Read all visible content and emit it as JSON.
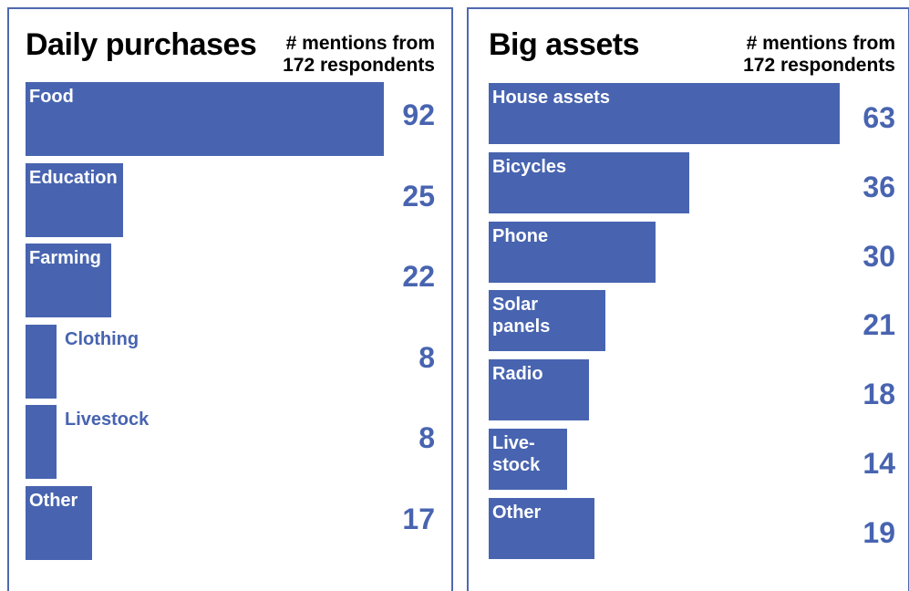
{
  "chart_data": [
    {
      "type": "bar",
      "title": "Daily purchases",
      "subtitle": [
        "# mentions from",
        "172 respondents"
      ],
      "categories": [
        "Food",
        "Education",
        "Farming",
        "Clothing",
        "Livestock",
        "Other"
      ],
      "values": [
        92,
        25,
        22,
        8,
        8,
        17
      ],
      "labels_outside": [
        false,
        false,
        false,
        true,
        true,
        false
      ]
    },
    {
      "type": "bar",
      "title": "Big assets",
      "subtitle": [
        "# mentions from",
        "172 respondents"
      ],
      "categories": [
        "House assets",
        "Bicycles",
        "Phone",
        "Solar\npanels",
        "Radio",
        "Live-\nstock",
        "Other"
      ],
      "values": [
        63,
        36,
        30,
        21,
        18,
        14,
        19
      ],
      "labels_outside": [
        false,
        false,
        false,
        false,
        false,
        false,
        false
      ]
    }
  ],
  "colors": {
    "bar": "#4864b0",
    "border": "#4e69b0"
  }
}
